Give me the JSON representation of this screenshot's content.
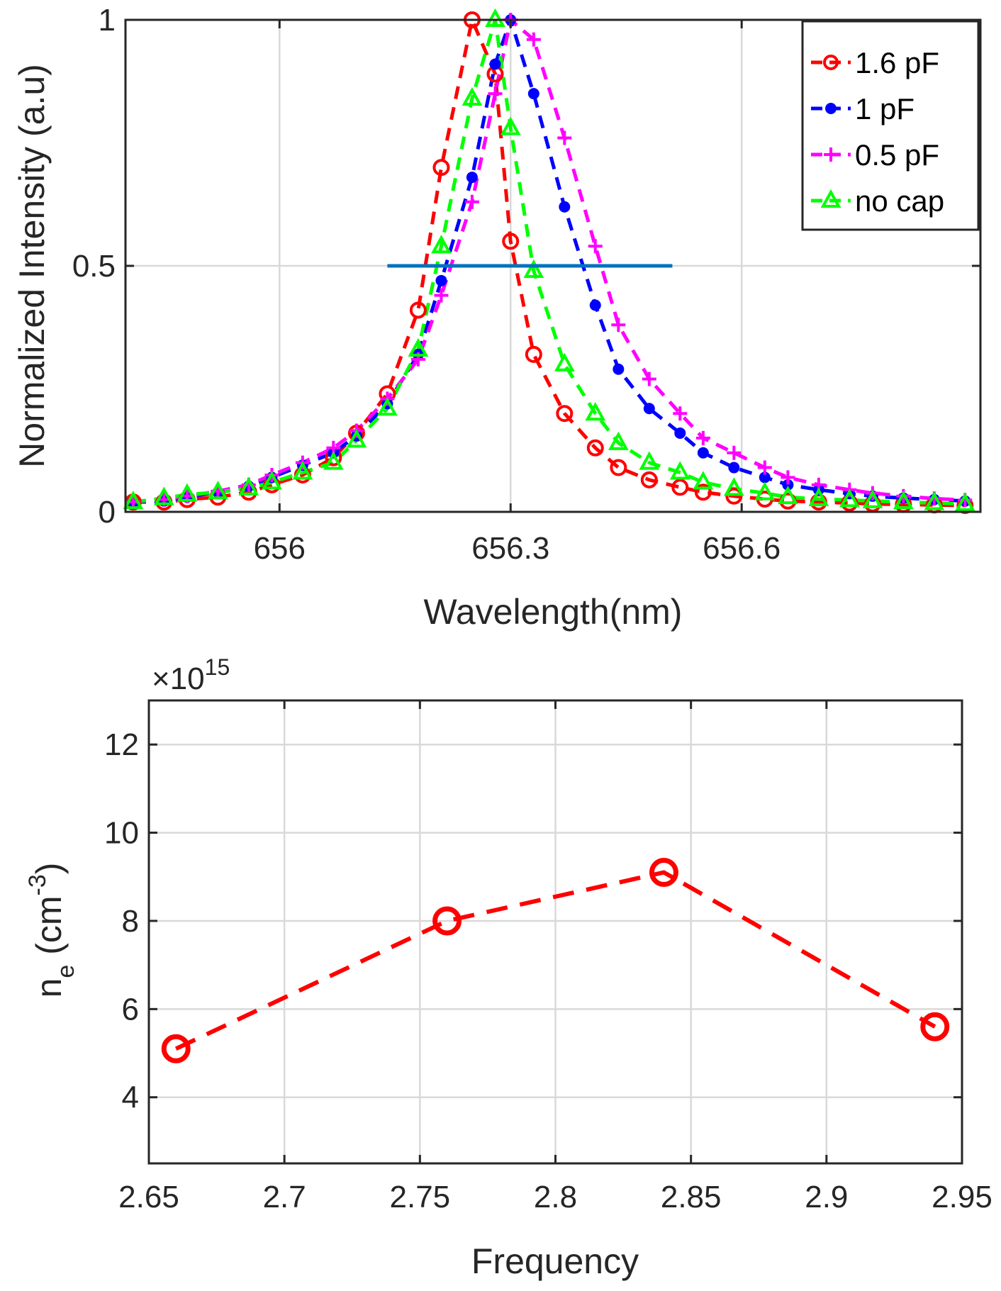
{
  "chart_data": [
    {
      "type": "line",
      "xlabel": "Wavelength(nm)",
      "ylabel": "Normalized Intensity (a.u)",
      "xlim": [
        655.8,
        656.91
      ],
      "ylim": [
        0,
        1
      ],
      "xticks": [
        656,
        656.3,
        656.6
      ],
      "xtick_labels": [
        "656",
        "656.3",
        "656.6"
      ],
      "yticks": [
        0,
        0.5,
        1
      ],
      "ytick_labels": [
        "0",
        "0.5",
        "1"
      ],
      "grid": true,
      "legend_position": "top-right",
      "x": [
        655.81,
        655.85,
        655.88,
        655.92,
        655.96,
        655.99,
        656.03,
        656.07,
        656.1,
        656.14,
        656.18,
        656.21,
        656.25,
        656.28,
        656.3,
        656.33,
        656.37,
        656.41,
        656.44,
        656.48,
        656.52,
        656.55,
        656.59,
        656.63,
        656.66,
        656.7,
        656.74,
        656.77,
        656.81,
        656.85,
        656.89
      ],
      "reference_line": {
        "label": "half maximum",
        "y": 0.5,
        "x_range": [
          656.14,
          656.51
        ]
      },
      "series": [
        {
          "name": "1.6 pF",
          "color": "#ff0000",
          "marker": "circle-open",
          "values": [
            0.02,
            0.02,
            0.025,
            0.03,
            0.04,
            0.055,
            0.075,
            0.11,
            0.16,
            0.24,
            0.41,
            0.7,
            1.0,
            0.89,
            0.55,
            0.32,
            0.2,
            0.13,
            0.09,
            0.065,
            0.05,
            0.04,
            0.032,
            0.026,
            0.022,
            0.02,
            0.018,
            0.016,
            0.015,
            0.014,
            0.013
          ]
        },
        {
          "name": "1 pF",
          "color": "#0000ff",
          "marker": "dot",
          "values": [
            0.02,
            0.022,
            0.03,
            0.04,
            0.052,
            0.07,
            0.095,
            0.12,
            0.155,
            0.22,
            0.32,
            0.47,
            0.68,
            0.91,
            1.0,
            0.85,
            0.62,
            0.42,
            0.29,
            0.21,
            0.16,
            0.12,
            0.09,
            0.07,
            0.055,
            0.045,
            0.037,
            0.032,
            0.028,
            0.025,
            0.022
          ]
        },
        {
          "name": "0.5 pF",
          "color": "#ff00ff",
          "marker": "plus",
          "values": [
            0.02,
            0.025,
            0.032,
            0.042,
            0.055,
            0.075,
            0.1,
            0.13,
            0.165,
            0.23,
            0.31,
            0.44,
            0.63,
            0.85,
            1.0,
            0.96,
            0.76,
            0.54,
            0.38,
            0.27,
            0.2,
            0.15,
            0.12,
            0.09,
            0.07,
            0.055,
            0.045,
            0.038,
            0.032,
            0.027,
            0.024
          ]
        },
        {
          "name": "no cap",
          "color": "#00ff00",
          "marker": "triangle-open",
          "values": [
            0.02,
            0.028,
            0.035,
            0.04,
            0.048,
            0.06,
            0.08,
            0.1,
            0.145,
            0.21,
            0.33,
            0.54,
            0.84,
            1.0,
            0.78,
            0.49,
            0.3,
            0.2,
            0.14,
            0.1,
            0.08,
            0.06,
            0.047,
            0.038,
            0.03,
            0.026,
            0.024,
            0.022,
            0.02,
            0.018,
            0.016
          ]
        }
      ]
    },
    {
      "type": "line",
      "xlabel": "Frequency",
      "ylabel": "n",
      "ylabel_subscript": "e",
      "ylabel_unit": " (cm",
      "ylabel_unit_superscript": "-3",
      "ylabel_unit_close": ")",
      "multiplier_base": "×10",
      "multiplier_exponent": "15",
      "xlim": [
        2.65,
        2.95
      ],
      "ylim": [
        2.5,
        13
      ],
      "xticks": [
        2.65,
        2.7,
        2.75,
        2.8,
        2.85,
        2.9,
        2.95
      ],
      "xtick_labels": [
        "2.65",
        "2.7",
        "2.75",
        "2.8",
        "2.85",
        "2.9",
        "2.95"
      ],
      "yticks": [
        4,
        6,
        8,
        10,
        12
      ],
      "ytick_labels": [
        "4",
        "6",
        "8",
        "10",
        "12"
      ],
      "grid": true,
      "series": [
        {
          "name": "n_e",
          "color": "#ff0000",
          "marker": "circle-open",
          "x": [
            2.66,
            2.76,
            2.84,
            2.94
          ],
          "values": [
            5.1,
            8.0,
            9.1,
            5.6
          ]
        }
      ]
    }
  ]
}
